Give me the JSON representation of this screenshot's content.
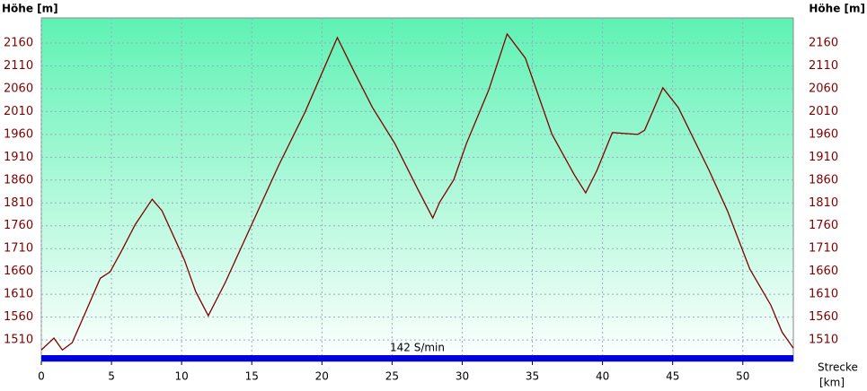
{
  "chart_data": {
    "type": "line",
    "y_label": "Höhe [m]",
    "x_label": "Strecke",
    "x_unit": "[km]",
    "annotation": "142 S/min",
    "series": [
      {
        "name": "Höhe",
        "color": "#800000",
        "x": [
          0,
          0.9,
          1.5,
          2.2,
          3.1,
          4.2,
          4.9,
          5.7,
          6.7,
          7.9,
          8.6,
          10.2,
          11.0,
          11.9,
          13.1,
          15.0,
          16.9,
          18.8,
          21.1,
          22.3,
          23.6,
          25.2,
          26.8,
          27.9,
          28.4,
          29.4,
          30.3,
          31.9,
          33.2,
          34.5,
          36.4,
          38.0,
          38.8,
          39.6,
          40.7,
          42.5,
          43.0,
          44.3,
          45.4,
          47.6,
          48.9,
          50.5,
          52.0,
          52.8,
          53.6
        ],
        "values": [
          1488,
          1514,
          1488,
          1504,
          1567,
          1645,
          1659,
          1704,
          1763,
          1818,
          1793,
          1685,
          1616,
          1563,
          1635,
          1763,
          1891,
          2009,
          2172,
          2097,
          2019,
          1940,
          1842,
          1777,
          1812,
          1861,
          1940,
          2058,
          2180,
          2127,
          1960,
          1871,
          1832,
          1881,
          1964,
          1960,
          1969,
          2062,
          2019,
          1881,
          1793,
          1665,
          1586,
          1527,
          1492
        ]
      }
    ],
    "xlim": [
      0,
      53.6
    ],
    "xticks": [
      0,
      5,
      10,
      15,
      20,
      25,
      30,
      35,
      40,
      45,
      50
    ],
    "ylim": [
      1463,
      2215
    ],
    "yticks": [
      1510,
      1560,
      1610,
      1660,
      1710,
      1760,
      1810,
      1860,
      1910,
      1960,
      2010,
      2060,
      2110,
      2160
    ],
    "grid": true
  }
}
